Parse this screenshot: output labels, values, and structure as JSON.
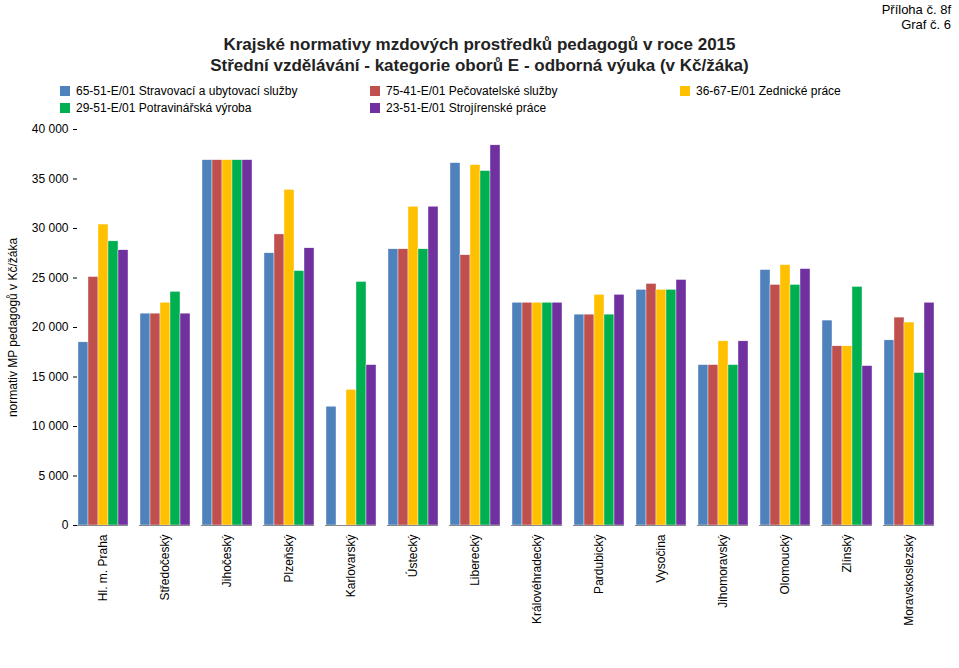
{
  "chart_data": {
    "type": "bar",
    "annotations": [
      "Příloha č. 8f",
      "Graf č. 6"
    ],
    "title": "Krajské normativy mzdových prostředků pedagogů v roce 2015",
    "subtitle": "Střední vzdělávání - kategorie oborů E - odborná výuka (v Kč/žáka)",
    "y_label": "normativ MP pedagogů v Kč/žáka",
    "categories": [
      "Hl. m. Praha",
      "Středočeský",
      "Jihočeský",
      "Plzeňský",
      "Karlovarský",
      "Ústecký",
      "Liberecký",
      "Královéhradecký",
      "Pardubický",
      "Vysočina",
      "Jihomoravský",
      "Olomoucký",
      "Zlínský",
      "Moravskoslezský"
    ],
    "series": [
      {
        "name": "65-51-E/01 Stravovací a ubytovací služby",
        "color": "#4f81bd",
        "values": [
          18500,
          21400,
          36900,
          27500,
          12000,
          27900,
          36600,
          22500,
          21300,
          23800,
          16200,
          25800,
          20700,
          18700
        ]
      },
      {
        "name": "75-41-E/01 Pečovatelské služby",
        "color": "#c0504d",
        "values": [
          25100,
          21400,
          36900,
          29400,
          null,
          27900,
          27300,
          22500,
          21300,
          24400,
          16200,
          24300,
          18100,
          21000
        ]
      },
      {
        "name": "36-67-E/01 Zednické práce",
        "color": "#ffc000",
        "values": [
          30400,
          22500,
          36900,
          33900,
          13700,
          32200,
          36400,
          22500,
          23300,
          23800,
          18600,
          26300,
          18100,
          20500
        ]
      },
      {
        "name": "29-51-E/01 Potravinářská výroba",
        "color": "#00b050",
        "values": [
          28700,
          23600,
          36900,
          25700,
          24600,
          27900,
          35800,
          22500,
          21300,
          23800,
          16200,
          24300,
          24100,
          15400
        ]
      },
      {
        "name": "23-51-E/01 Strojírenské práce",
        "color": "#7030a0",
        "values": [
          27800,
          21400,
          36900,
          28000,
          16200,
          32200,
          38400,
          22500,
          23300,
          24800,
          18600,
          25900,
          16100,
          22500
        ]
      }
    ],
    "ylim": [
      0,
      40000
    ],
    "yticks": [
      0,
      {
        "value": 5000,
        "label": "5 000"
      },
      {
        "value": 10000,
        "label": "10 000"
      },
      {
        "value": 15000,
        "label": "15 000"
      },
      {
        "value": 20000,
        "label": "20 000"
      },
      {
        "value": 25000,
        "label": "25 000"
      },
      {
        "value": 30000,
        "label": "30 000"
      },
      {
        "value": 35000,
        "label": "35 000"
      },
      {
        "value": 40000,
        "label": "40 000"
      }
    ],
    "grid": false,
    "legend": "top"
  }
}
